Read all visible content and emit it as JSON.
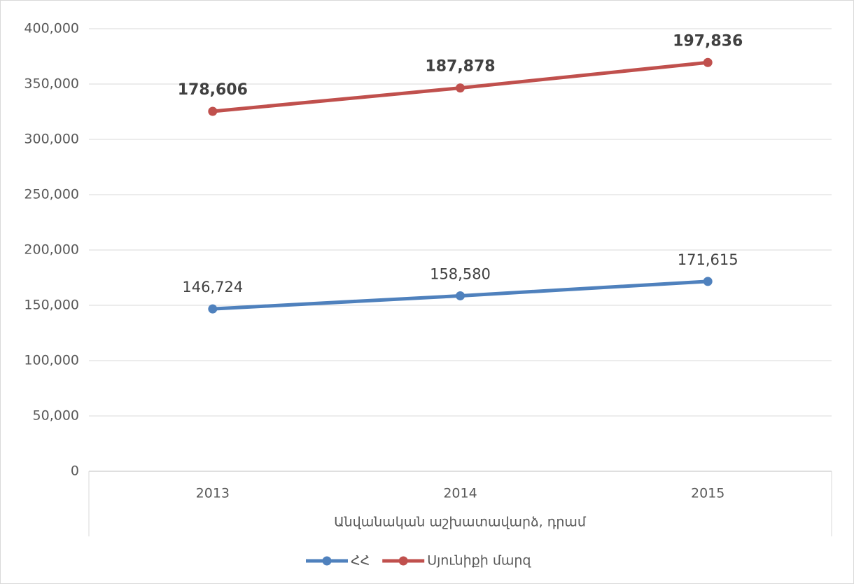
{
  "chart_data": {
    "type": "line",
    "stacked": true,
    "x_label": "Անվանական աշխատավարձ, դրամ",
    "categories": [
      "2013",
      "2014",
      "2015"
    ],
    "series": [
      {
        "name": "ՀՀ",
        "color": "#4f81bd",
        "values": [
          146724,
          158580,
          171615
        ],
        "value_labels": [
          "146,724",
          "158,580",
          "171,615"
        ],
        "label_bold": false
      },
      {
        "name": "Սյունիքի մարզ",
        "color": "#c0504d",
        "values": [
          178606,
          187878,
          197836
        ],
        "value_labels": [
          "178,606",
          "187,878",
          "197,836"
        ],
        "label_bold": true
      }
    ],
    "ylim": [
      0,
      400000
    ],
    "yticks": [
      0,
      {
        "value": 50000,
        "label": "50,000"
      },
      {
        "value": 100000,
        "label": "100,000"
      },
      {
        "value": 150000,
        "label": "150,000"
      },
      {
        "value": 200000,
        "label": "200,000"
      },
      {
        "value": 250000,
        "label": "250,000"
      },
      {
        "value": 300000,
        "label": "300,000"
      },
      {
        "value": 350000,
        "label": "350,000"
      },
      {
        "value": 400000,
        "label": "400,000"
      }
    ],
    "grid": true,
    "legend": "bottom"
  }
}
